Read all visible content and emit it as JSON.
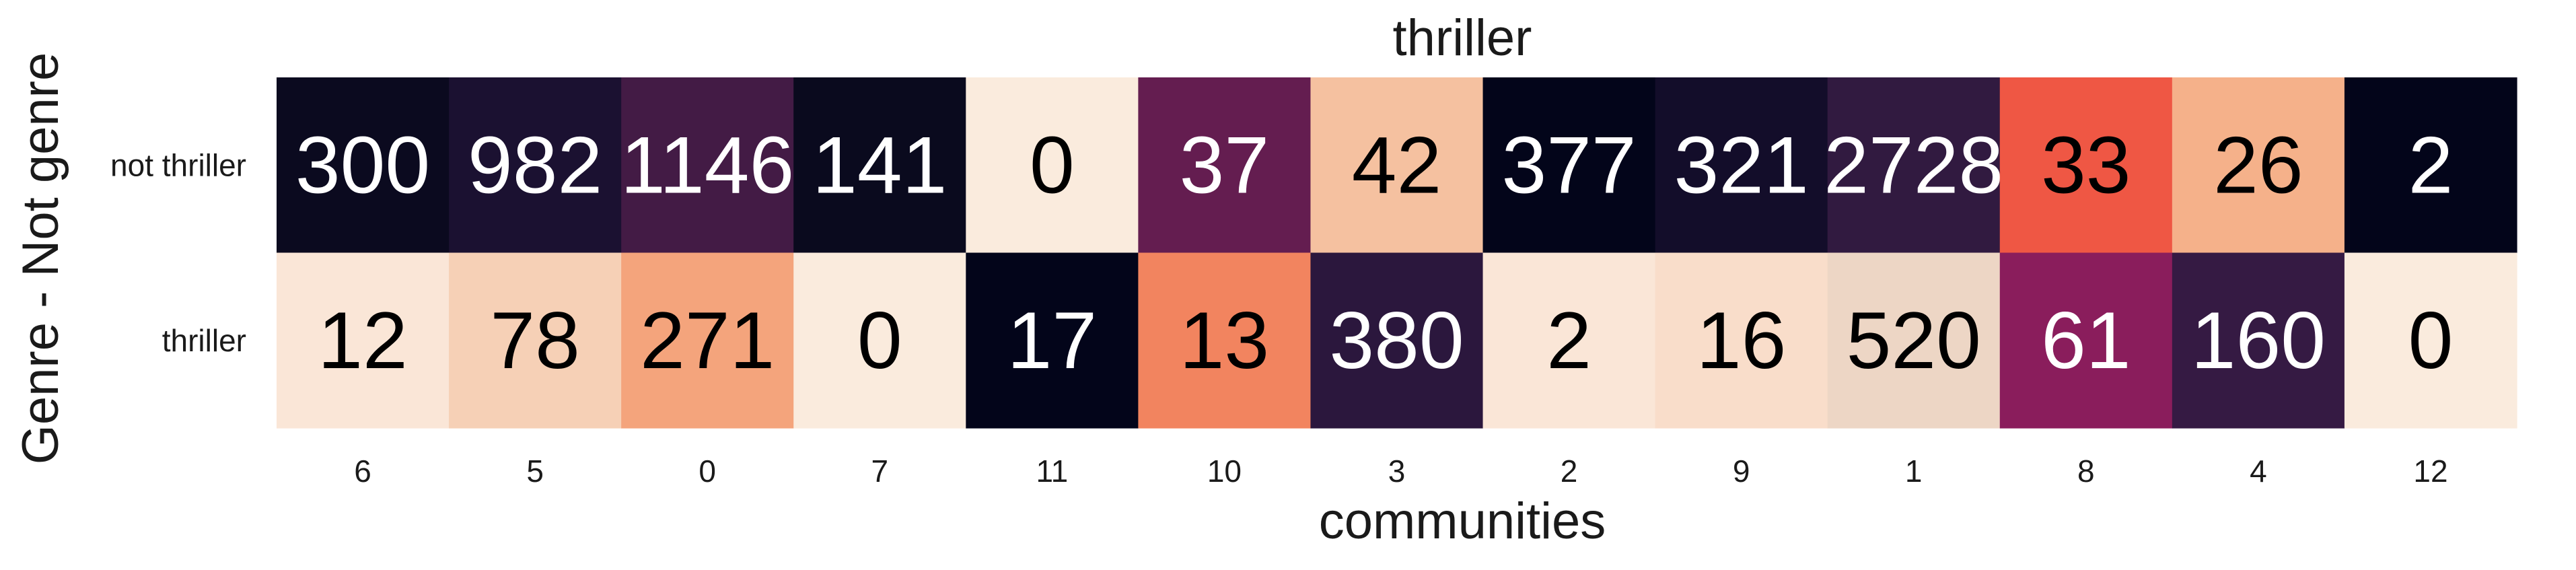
{
  "chart_data": {
    "type": "heatmap",
    "title": "thriller",
    "xlabel": "communities",
    "ylabel": "Genre - Not genre",
    "x_categories": [
      "6",
      "5",
      "0",
      "7",
      "11",
      "10",
      "3",
      "2",
      "9",
      "1",
      "8",
      "4",
      "12"
    ],
    "y_categories": [
      "not thriller",
      "thriller"
    ],
    "values": [
      [
        300,
        982,
        1146,
        141,
        0,
        37,
        42,
        377,
        321,
        2728,
        33,
        26,
        2
      ],
      [
        12,
        78,
        271,
        0,
        17,
        13,
        380,
        2,
        16,
        520,
        61,
        160,
        0
      ]
    ],
    "colors": [
      [
        "#0b0a1f",
        "#1b1131",
        "#431b45",
        "#0a0a1e",
        "#faebdd",
        "#641d50",
        "#f5c1a0",
        "#03051a",
        "#130d2a",
        "#311a40",
        "#ef5744",
        "#f5b18a",
        "#03051a"
      ],
      [
        "#fae6d7",
        "#f6d0b6",
        "#f4a47c",
        "#faebdd",
        "#03051a",
        "#f2845f",
        "#2b173d",
        "#fae6d7",
        "#f9ddca",
        "#edd6c5",
        "#8a1d5c",
        "#351a43",
        "#faebdd"
      ]
    ],
    "text_colors": [
      [
        "#ffffff",
        "#ffffff",
        "#ffffff",
        "#ffffff",
        "#000000",
        "#ffffff",
        "#000000",
        "#ffffff",
        "#ffffff",
        "#ffffff",
        "#000000",
        "#000000",
        "#ffffff"
      ],
      [
        "#000000",
        "#000000",
        "#000000",
        "#000000",
        "#ffffff",
        "#000000",
        "#ffffff",
        "#000000",
        "#000000",
        "#000000",
        "#ffffff",
        "#ffffff",
        "#000000"
      ]
    ],
    "colorbar": false,
    "grid": false
  }
}
